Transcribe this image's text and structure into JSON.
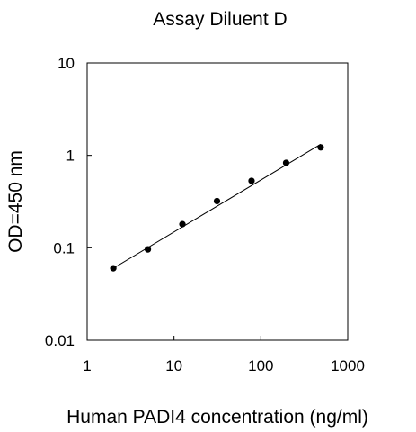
{
  "chart_data": {
    "type": "scatter",
    "title": "Assay Diluent D",
    "xlabel": "Human PADI4 concentration (ng/ml)",
    "ylabel": "OD=450 nm",
    "x_scale": "log",
    "y_scale": "log",
    "xlim": [
      1,
      1000
    ],
    "ylim": [
      0.01,
      10
    ],
    "x_ticks": [
      {
        "value": 1,
        "label": "1"
      },
      {
        "value": 10,
        "label": "10"
      },
      {
        "value": 100,
        "label": "100"
      },
      {
        "value": 1000,
        "label": "1000"
      }
    ],
    "y_ticks": [
      {
        "value": 0.01,
        "label": "0.01"
      },
      {
        "value": 0.1,
        "label": "0.1"
      },
      {
        "value": 1,
        "label": "1"
      },
      {
        "value": 10,
        "label": "10"
      }
    ],
    "grid": false,
    "legend": "none",
    "series": [
      {
        "points": [
          {
            "x": 2.0,
            "y": 0.06
          },
          {
            "x": 5.0,
            "y": 0.096
          },
          {
            "x": 12.5,
            "y": 0.18
          },
          {
            "x": 31.25,
            "y": 0.32
          },
          {
            "x": 78.1,
            "y": 0.53
          },
          {
            "x": 195.3,
            "y": 0.83
          },
          {
            "x": 488.3,
            "y": 1.22
          }
        ]
      }
    ],
    "fit_line": {
      "type": "linear-on-log-log",
      "points": [
        {
          "x": 2.0,
          "y": 0.06
        },
        {
          "x": 488.3,
          "y": 1.32
        }
      ]
    },
    "colors": {
      "marker": "#000000",
      "line": "#000000",
      "axis": "#000000"
    }
  }
}
